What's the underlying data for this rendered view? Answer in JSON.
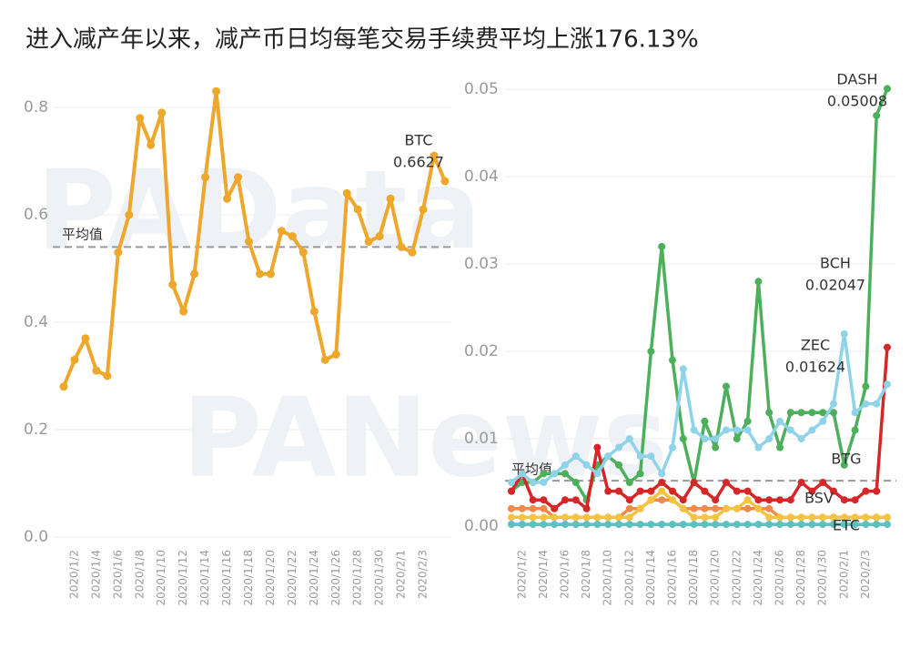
{
  "title": "进入减产年以来，减产币日均每笔交易手续费平均上涨176.13%",
  "watermarks": [
    "PAData",
    "PANews"
  ],
  "chart_data": [
    {
      "type": "line",
      "categories": [
        null,
        "2020/1/2",
        null,
        "2020/1/4",
        null,
        "2020/1/6",
        null,
        "2020/1/8",
        null,
        "2020/1/10",
        null,
        "2020/1/12",
        null,
        "2020/1/14",
        null,
        "2020/1/16",
        null,
        "2020/1/18",
        null,
        "2020/1/20",
        null,
        "2020/1/22",
        null,
        "2020/1/24",
        null,
        "2020/1/26",
        null,
        "2020/1/28",
        null,
        "2020/1/30",
        null,
        "2020/2/1",
        null,
        "2020/2/3",
        null,
        null
      ],
      "series": [
        {
          "name": "BTC",
          "color": "#eea62b",
          "values": [
            0.28,
            0.33,
            0.37,
            0.31,
            0.3,
            0.53,
            0.6,
            0.78,
            0.73,
            0.79,
            0.47,
            0.42,
            0.49,
            0.67,
            0.83,
            0.63,
            0.67,
            0.55,
            0.49,
            0.49,
            0.57,
            0.56,
            0.53,
            0.42,
            0.33,
            0.34,
            0.64,
            0.61,
            0.55,
            0.56,
            0.63,
            0.54,
            0.53,
            0.61,
            0.71,
            0.6627
          ]
        }
      ],
      "average": {
        "label": "平均值",
        "value": 0.54
      },
      "ylim": [
        0,
        0.85
      ],
      "yticks": [
        {
          "value": 0,
          "label": "0.0"
        },
        0.2,
        0.4,
        0.6,
        0.8
      ],
      "grid": true
    },
    {
      "type": "line",
      "categories": [
        null,
        "2020/1/2",
        null,
        "2020/1/4",
        null,
        "2020/1/6",
        null,
        "2020/1/8",
        null,
        "2020/1/10",
        null,
        "2020/1/12",
        null,
        "2020/1/14",
        null,
        "2020/1/16",
        null,
        "2020/1/18",
        null,
        "2020/1/20",
        null,
        "2020/1/22",
        null,
        "2020/1/24",
        null,
        "2020/1/26",
        null,
        "2020/1/28",
        null,
        "2020/1/30",
        null,
        "2020/2/1",
        null,
        "2020/2/3",
        null,
        null
      ],
      "series": [
        {
          "name": "DASH",
          "color": "#4caf5a",
          "values": [
            0.004,
            0.005,
            0.005,
            0.006,
            0.006,
            0.006,
            0.005,
            0.003,
            0.007,
            0.008,
            0.007,
            0.005,
            0.006,
            0.02,
            0.032,
            0.019,
            0.01,
            0.005,
            0.012,
            0.009,
            0.016,
            0.01,
            0.012,
            0.028,
            0.013,
            0.009,
            0.013,
            0.013,
            0.013,
            0.013,
            0.013,
            0.007,
            0.011,
            0.016,
            0.047,
            0.05008
          ]
        },
        {
          "name": "BCH",
          "color": "#d62728",
          "values": [
            0.004,
            0.006,
            0.003,
            0.003,
            0.002,
            0.003,
            0.003,
            0.002,
            0.009,
            0.004,
            0.004,
            0.003,
            0.004,
            0.004,
            0.005,
            0.004,
            0.003,
            0.005,
            0.004,
            0.003,
            0.005,
            0.004,
            0.004,
            0.003,
            0.003,
            0.003,
            0.003,
            0.005,
            0.004,
            0.005,
            0.004,
            0.003,
            0.003,
            0.004,
            0.004,
            0.02047
          ]
        },
        {
          "name": "ZEC",
          "color": "#8fd3e8",
          "values": [
            0.005,
            0.006,
            0.005,
            0.005,
            0.006,
            0.007,
            0.008,
            0.007,
            0.006,
            0.008,
            0.009,
            0.01,
            0.008,
            0.008,
            0.006,
            0.009,
            0.018,
            0.011,
            0.01,
            0.01,
            0.011,
            0.011,
            0.011,
            0.009,
            0.01,
            0.012,
            0.011,
            0.01,
            0.011,
            0.012,
            0.014,
            0.022,
            0.013,
            0.014,
            0.014,
            0.01624
          ]
        },
        {
          "name": "BTG",
          "color": "#f08a4b",
          "values": [
            0.002,
            0.002,
            0.002,
            0.002,
            0.001,
            0.001,
            0.001,
            0.001,
            0.001,
            0.001,
            0.001,
            0.002,
            0.002,
            0.003,
            0.003,
            0.003,
            0.002,
            0.002,
            0.002,
            0.002,
            0.002,
            0.002,
            0.002,
            0.002,
            0.002,
            0.001,
            0.001,
            0.001,
            0.001,
            0.001,
            0.001,
            0.001,
            0.001,
            0.001,
            0.001,
            0.001
          ]
        },
        {
          "name": "BSV",
          "color": "#f5c342",
          "values": [
            0.001,
            0.001,
            0.001,
            0.001,
            0.001,
            0.001,
            0.001,
            0.001,
            0.001,
            0.001,
            0.001,
            0.001,
            0.002,
            0.003,
            0.004,
            0.003,
            0.002,
            0.001,
            0.001,
            0.001,
            0.002,
            0.002,
            0.003,
            0.002,
            0.001,
            0.001,
            0.001,
            0.001,
            0.001,
            0.001,
            0.001,
            0.001,
            0.001,
            0.001,
            0.001,
            0.001
          ]
        },
        {
          "name": "ETC",
          "color": "#5bc0be",
          "values": [
            0.0002,
            0.0002,
            0.0002,
            0.0002,
            0.0002,
            0.0002,
            0.0002,
            0.0002,
            0.0002,
            0.0002,
            0.0002,
            0.0002,
            0.0002,
            0.0002,
            0.0002,
            0.0002,
            0.0002,
            0.0002,
            0.0002,
            0.0002,
            0.0002,
            0.0002,
            0.0002,
            0.0002,
            0.0002,
            0.0002,
            0.0002,
            0.0002,
            0.0002,
            0.0002,
            0.0002,
            0.0002,
            0.0002,
            0.0002,
            0.0002,
            0.0002
          ]
        }
      ],
      "average": {
        "label": "平均值",
        "value": 0.0052
      },
      "ylim": [
        0,
        0.052
      ],
      "yticks": [
        {
          "value": 0,
          "label": "0.00"
        },
        {
          "value": 0.01,
          "label": "0.01"
        },
        {
          "value": 0.02,
          "label": "0.02"
        },
        {
          "value": 0.03,
          "label": "0.03"
        },
        {
          "value": 0.04,
          "label": "0.04"
        },
        {
          "value": 0.05,
          "label": "0.05"
        }
      ],
      "grid": true
    }
  ]
}
